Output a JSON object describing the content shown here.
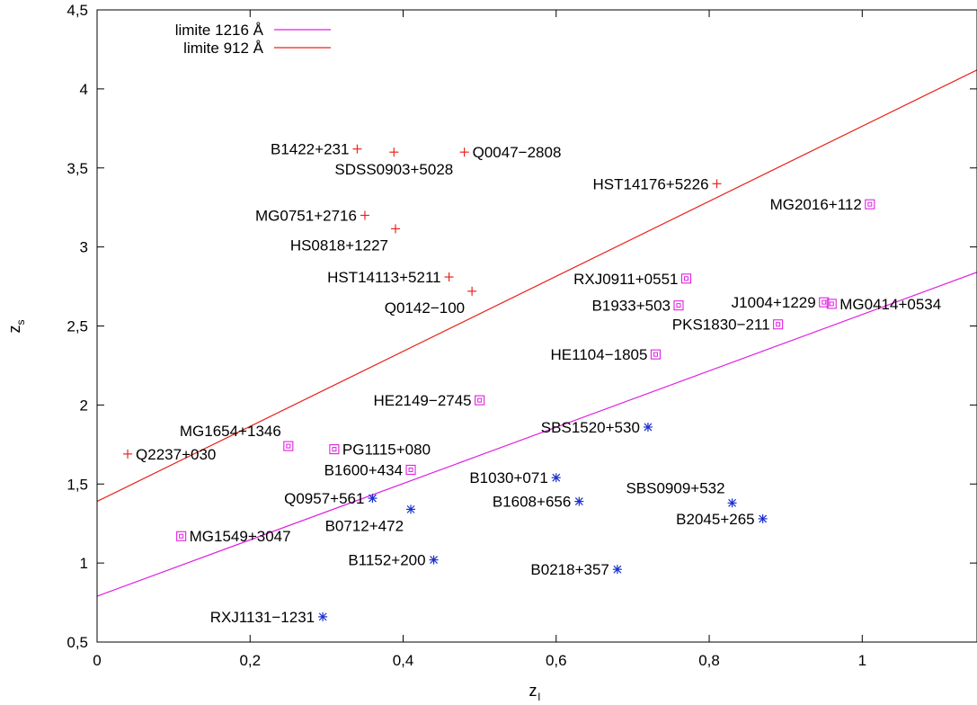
{
  "chart_data": {
    "type": "scatter",
    "title": "",
    "xlabel": "z",
    "xlabel_sub": "l",
    "ylabel": "z",
    "ylabel_sub": "s",
    "xlim": [
      0,
      1.15
    ],
    "ylim": [
      0.5,
      4.5
    ],
    "x_ticks": [
      0,
      0.2,
      0.4,
      0.6,
      0.8,
      1
    ],
    "x_tick_labels": [
      "0",
      "0,2",
      "0,4",
      "0,6",
      "0,8",
      "1"
    ],
    "y_ticks": [
      0.5,
      1,
      1.5,
      2,
      2.5,
      3,
      3.5,
      4,
      4.5
    ],
    "y_tick_labels": [
      "0,5",
      "1",
      "1,5",
      "2",
      "2,5",
      "3",
      "3,5",
      "4",
      "4,5"
    ],
    "grid": false,
    "legend_position": "top-left",
    "colors": {
      "red": "#e8251c",
      "magenta": "#e020e0",
      "blue": "#1a2fd0",
      "frame": "#000000"
    },
    "lines": [
      {
        "name": "limite 1216 Å",
        "color": "#e020e0",
        "x": [
          0,
          1.15
        ],
        "y": [
          0.79,
          2.84
        ]
      },
      {
        "name": "limite 912 Å",
        "color": "#e8251c",
        "x": [
          0,
          1.15
        ],
        "y": [
          1.39,
          4.12
        ]
      }
    ],
    "series": [
      {
        "marker": "plus",
        "color": "#e8251c",
        "points": [
          {
            "label": "B1422+231",
            "x": 0.34,
            "y": 3.62,
            "label_side": "left"
          },
          {
            "label": "SDSS0903+5028",
            "x": 0.388,
            "y": 3.6,
            "label_side": "below"
          },
          {
            "label": "Q0047−2808",
            "x": 0.48,
            "y": 3.6,
            "label_side": "right"
          },
          {
            "label": "HST14176+5226",
            "x": 0.81,
            "y": 3.4,
            "label_side": "left"
          },
          {
            "label": "MG0751+2716",
            "x": 0.35,
            "y": 3.2,
            "label_side": "left"
          },
          {
            "label": "HS0818+1227",
            "x": 0.39,
            "y": 3.115,
            "label_side": "below-left"
          },
          {
            "label": "HST14113+5211",
            "x": 0.46,
            "y": 2.81,
            "label_side": "left"
          },
          {
            "label": "Q0142−100",
            "x": 0.49,
            "y": 2.72,
            "label_side": "below-left"
          },
          {
            "label": "Q2237+030",
            "x": 0.04,
            "y": 1.69,
            "label_side": "right"
          }
        ]
      },
      {
        "marker": "box",
        "color": "#e020e0",
        "points": [
          {
            "label": "MG2016+112",
            "x": 1.01,
            "y": 3.27,
            "label_side": "left"
          },
          {
            "label": "RXJ0911+0551",
            "x": 0.77,
            "y": 2.8,
            "label_side": "left"
          },
          {
            "label": "B1933+503",
            "x": 0.76,
            "y": 2.63,
            "label_side": "left"
          },
          {
            "label": "J1004+1229",
            "x": 0.95,
            "y": 2.65,
            "label_side": "left"
          },
          {
            "label": "MG0414+0534",
            "x": 0.96,
            "y": 2.64,
            "label_side": "right"
          },
          {
            "label": "PKS1830−211",
            "x": 0.89,
            "y": 2.51,
            "label_side": "left"
          },
          {
            "label": "HE1104−1805",
            "x": 0.73,
            "y": 2.32,
            "label_side": "left"
          },
          {
            "label": "HE2149−2745",
            "x": 0.5,
            "y": 2.03,
            "label_side": "left"
          },
          {
            "label": "MG1654+1346",
            "x": 0.25,
            "y": 1.74,
            "label_side": "above-left"
          },
          {
            "label": "PG1115+080",
            "x": 0.31,
            "y": 1.72,
            "label_side": "right"
          },
          {
            "label": "B1600+434",
            "x": 0.41,
            "y": 1.59,
            "label_side": "left"
          },
          {
            "label": "MG1549+3047",
            "x": 0.11,
            "y": 1.17,
            "label_side": "right"
          }
        ]
      },
      {
        "marker": "star",
        "color": "#1a2fd0",
        "points": [
          {
            "label": "SBS1520+530",
            "x": 0.72,
            "y": 1.86,
            "label_side": "left"
          },
          {
            "label": "B1030+071",
            "x": 0.6,
            "y": 1.54,
            "label_side": "left"
          },
          {
            "label": "Q0957+561",
            "x": 0.36,
            "y": 1.41,
            "label_side": "left"
          },
          {
            "label": "B1608+656",
            "x": 0.63,
            "y": 1.39,
            "label_side": "left"
          },
          {
            "label": "SBS0909+532",
            "x": 0.83,
            "y": 1.38,
            "label_side": "above-left"
          },
          {
            "label": "B0712+472",
            "x": 0.41,
            "y": 1.34,
            "label_side": "below-left"
          },
          {
            "label": "B2045+265",
            "x": 0.87,
            "y": 1.28,
            "label_side": "left"
          },
          {
            "label": "B1152+200",
            "x": 0.44,
            "y": 1.02,
            "label_side": "left"
          },
          {
            "label": "B0218+357",
            "x": 0.68,
            "y": 0.96,
            "label_side": "left"
          },
          {
            "label": "RXJ1131−1231",
            "x": 0.295,
            "y": 0.66,
            "label_side": "left"
          }
        ]
      }
    ]
  }
}
